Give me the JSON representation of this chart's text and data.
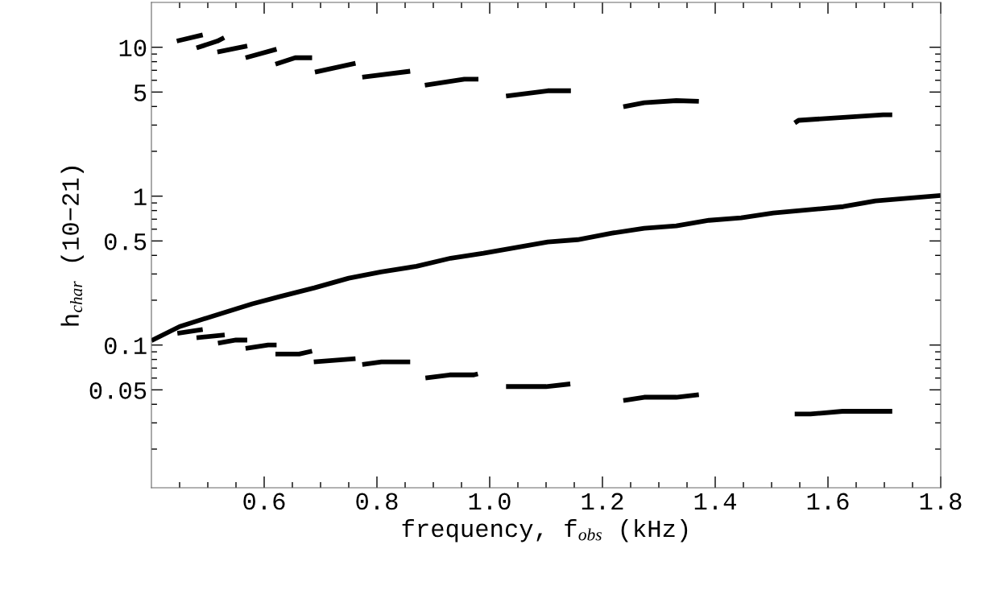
{
  "chart_data": {
    "type": "line",
    "xlabel": "frequency, f$_{obs}$ (kHz)",
    "ylabel": "h$_{char}$ (10−21)",
    "log": "y",
    "xlim": [
      0.4,
      1.8
    ],
    "ylim": [
      0.011,
      20
    ],
    "xticks": [
      {
        "value": 0.45,
        "label": null
      },
      {
        "value": 0.5,
        "label": null
      },
      {
        "value": 0.55,
        "label": null
      },
      {
        "value": 0.6,
        "label": "0.6"
      },
      {
        "value": 0.65,
        "label": null
      },
      {
        "value": 0.7,
        "label": null
      },
      {
        "value": 0.75,
        "label": null
      },
      {
        "value": 0.8,
        "label": "0.8"
      },
      {
        "value": 0.85,
        "label": null
      },
      {
        "value": 0.9,
        "label": null
      },
      {
        "value": 0.95,
        "label": null
      },
      {
        "value": 1.0,
        "label": "1.0"
      },
      {
        "value": 1.05,
        "label": null
      },
      {
        "value": 1.1,
        "label": null
      },
      {
        "value": 1.15,
        "label": null
      },
      {
        "value": 1.2,
        "label": "1.2"
      },
      {
        "value": 1.25,
        "label": null
      },
      {
        "value": 1.3,
        "label": null
      },
      {
        "value": 1.35,
        "label": null
      },
      {
        "value": 1.4,
        "label": "1.4"
      },
      {
        "value": 1.45,
        "label": null
      },
      {
        "value": 1.5,
        "label": null
      },
      {
        "value": 1.55,
        "label": null
      },
      {
        "value": 1.6,
        "label": "1.6"
      },
      {
        "value": 1.65,
        "label": null
      },
      {
        "value": 1.7,
        "label": null
      },
      {
        "value": 1.75,
        "label": null
      },
      {
        "value": 1.8,
        "label": "1.8"
      }
    ],
    "yticks": [
      {
        "value": 0.02,
        "label": null
      },
      {
        "value": 0.03,
        "label": null
      },
      {
        "value": 0.04,
        "label": null
      },
      0.05,
      {
        "value": 0.06,
        "label": null
      },
      {
        "value": 0.07,
        "label": null
      },
      {
        "value": 0.08,
        "label": null
      },
      {
        "value": 0.09,
        "label": null
      },
      0.1,
      {
        "value": 0.2,
        "label": null
      },
      {
        "value": 0.3,
        "label": null
      },
      {
        "value": 0.4,
        "label": null
      },
      0.5,
      {
        "value": 0.6,
        "label": null
      },
      {
        "value": 0.7,
        "label": null
      },
      {
        "value": 0.8,
        "label": null
      },
      {
        "value": 0.9,
        "label": null
      },
      1,
      {
        "value": 2,
        "label": null
      },
      {
        "value": 3,
        "label": null
      },
      {
        "value": 4,
        "label": null
      },
      5,
      {
        "value": 6,
        "label": null
      },
      {
        "value": 7,
        "label": null
      },
      {
        "value": 8,
        "label": null
      },
      {
        "value": 9,
        "label": null
      },
      10
    ],
    "marker": "none",
    "line_style": "solid",
    "series": [
      {
        "color": "#000000",
        "x": [
          0.4,
          0.45,
          0.517,
          0.579,
          0.627,
          0.689,
          0.75,
          0.807,
          0.87,
          0.931,
          0.989,
          1.046,
          1.103,
          1.156,
          1.217,
          1.274,
          1.331,
          1.389,
          1.446,
          1.503,
          1.627,
          1.684,
          1.8
        ],
        "values": [
          0.107,
          0.133,
          0.16,
          0.189,
          0.211,
          0.242,
          0.281,
          0.31,
          0.338,
          0.383,
          0.413,
          0.451,
          0.492,
          0.51,
          0.564,
          0.608,
          0.631,
          0.688,
          0.715,
          0.77,
          0.85,
          0.928,
          1.01
        ]
      },
      {
        "color": "#000000",
        "x": [
          0.445,
          0.491,
          null,
          0.48,
          0.517,
          0.529,
          null,
          0.517,
          0.57,
          null,
          0.567,
          0.622,
          null,
          0.62,
          0.655,
          0.685,
          null,
          0.69,
          0.762,
          null,
          0.774,
          0.859,
          null,
          0.885,
          0.955,
          0.98,
          null,
          1.029,
          1.103,
          1.144,
          null,
          1.237,
          1.274,
          1.331,
          1.371,
          null,
          1.541,
          1.548,
          1.698,
          1.714
        ],
        "values": [
          11.0,
          12.1,
          null,
          9.9,
          11.0,
          11.6,
          null,
          9.3,
          10.2,
          null,
          8.5,
          9.7,
          null,
          7.7,
          8.5,
          8.5,
          null,
          6.8,
          7.8,
          null,
          6.3,
          6.9,
          null,
          5.55,
          6.1,
          6.1,
          null,
          4.7,
          5.1,
          5.1,
          null,
          3.98,
          4.24,
          4.38,
          4.33,
          null,
          3.1,
          3.23,
          3.52,
          3.52
        ]
      },
      {
        "color": "#000000",
        "x": [
          0.446,
          0.491,
          null,
          0.48,
          0.53,
          null,
          0.518,
          0.55,
          0.57,
          null,
          0.567,
          0.607,
          0.622,
          null,
          0.62,
          0.662,
          0.685,
          null,
          0.688,
          0.762,
          null,
          0.774,
          0.808,
          0.859,
          null,
          0.886,
          0.929,
          0.972,
          0.979,
          null,
          1.029,
          1.1,
          1.143,
          null,
          1.237,
          1.274,
          1.331,
          1.371,
          null,
          1.541,
          1.569,
          1.626,
          1.714
        ],
        "values": [
          0.12,
          0.127,
          null,
          0.112,
          0.117,
          null,
          0.103,
          0.108,
          0.108,
          null,
          0.095,
          0.1,
          0.1,
          null,
          0.087,
          0.087,
          0.091,
          null,
          0.077,
          0.081,
          null,
          0.074,
          0.077,
          0.077,
          null,
          0.06,
          0.063,
          0.063,
          0.064,
          null,
          0.0526,
          0.0526,
          0.0548,
          null,
          0.0424,
          0.0446,
          0.0446,
          0.0464,
          null,
          0.0344,
          0.0344,
          0.0359,
          0.0359
        ]
      }
    ]
  }
}
